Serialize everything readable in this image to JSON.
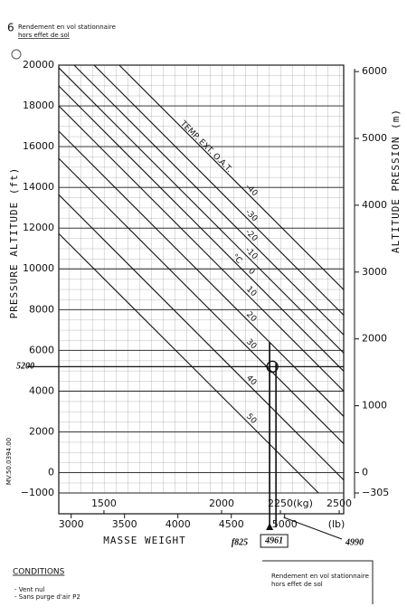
{
  "header": {
    "page_number": "6",
    "title_line1": "Rendement en vol stationnaire",
    "title_line2": "hors effet de sol"
  },
  "chart_data": {
    "type": "line",
    "ylabel": "PRESSURE ALTITUDE (ft)",
    "y2label": "ALTITUDE PRESSION (m)",
    "xlabel": "MASSE   WEIGHT",
    "x_unit": "(kg)",
    "x2_unit": "(lb)",
    "temp_label": "TEMP. EXT. O.A.T.",
    "temp_unit": "°C",
    "doc_ref": "MV.50.0394.00",
    "xlim": [
      1308,
      2519
    ],
    "xticks": [
      1500,
      2000,
      2250,
      2500
    ],
    "x2lim": [
      2884,
      5553
    ],
    "x2ticks": [
      3000,
      3500,
      4000,
      4500,
      5000
    ],
    "ylim": [
      -1000,
      20000
    ],
    "yticks": [
      {
        "value": -1000,
        "label": "−1000"
      },
      0,
      2000,
      4000,
      6000,
      8000,
      10000,
      12000,
      14000,
      16000,
      18000,
      20000
    ],
    "y2lim": [
      -305,
      6096
    ],
    "y2ticks": [
      {
        "value": -305,
        "label": "−305"
      },
      0,
      1000,
      2000,
      3000,
      4000,
      5000,
      6000
    ],
    "grid": true,
    "series": [
      {
        "name": "-40",
        "color": "#111",
        "x": [
          1565,
          2519
        ],
        "values": [
          20000,
          8980
        ]
      },
      {
        "name": "-30",
        "color": "#111",
        "x": [
          1458,
          2519
        ],
        "values": [
          20000,
          7730
        ]
      },
      {
        "name": "-20",
        "color": "#111",
        "x": [
          1373,
          2519
        ],
        "values": [
          20000,
          6760
        ]
      },
      {
        "name": "-10",
        "color": "#111",
        "x": [
          1308,
          2519
        ],
        "values": [
          19870,
          5870
        ]
      },
      {
        "name": "0",
        "color": "#111",
        "x": [
          1308,
          2519
        ],
        "values": [
          18980,
          4980
        ]
      },
      {
        "name": "10",
        "color": "#111",
        "x": [
          1308,
          2519
        ],
        "values": [
          18000,
          4000
        ]
      },
      {
        "name": "20",
        "color": "#111",
        "x": [
          1308,
          2519
        ],
        "values": [
          16760,
          2760
        ]
      },
      {
        "name": "30",
        "color": "#111",
        "x": [
          1308,
          2519
        ],
        "values": [
          15420,
          1420
        ]
      },
      {
        "name": "40",
        "color": "#111",
        "x": [
          1308,
          2519
        ],
        "values": [
          13640,
          -360
        ]
      },
      {
        "name": "50",
        "color": "#111",
        "x": [
          1308,
          2412
        ],
        "values": [
          11730,
          -1000
        ]
      }
    ],
    "annotations": {
      "altitude": 5200,
      "weight_lb": 4961,
      "weight_lb_alt": 4990,
      "note": "f825"
    }
  },
  "footer": {
    "conditions_title": "CONDITIONS",
    "conditions": [
      "- Vent nul",
      "- Sans purge d'air P2"
    ],
    "box_line1": "Rendement en vol stationnaire",
    "box_line2": "hors effet de sol"
  }
}
